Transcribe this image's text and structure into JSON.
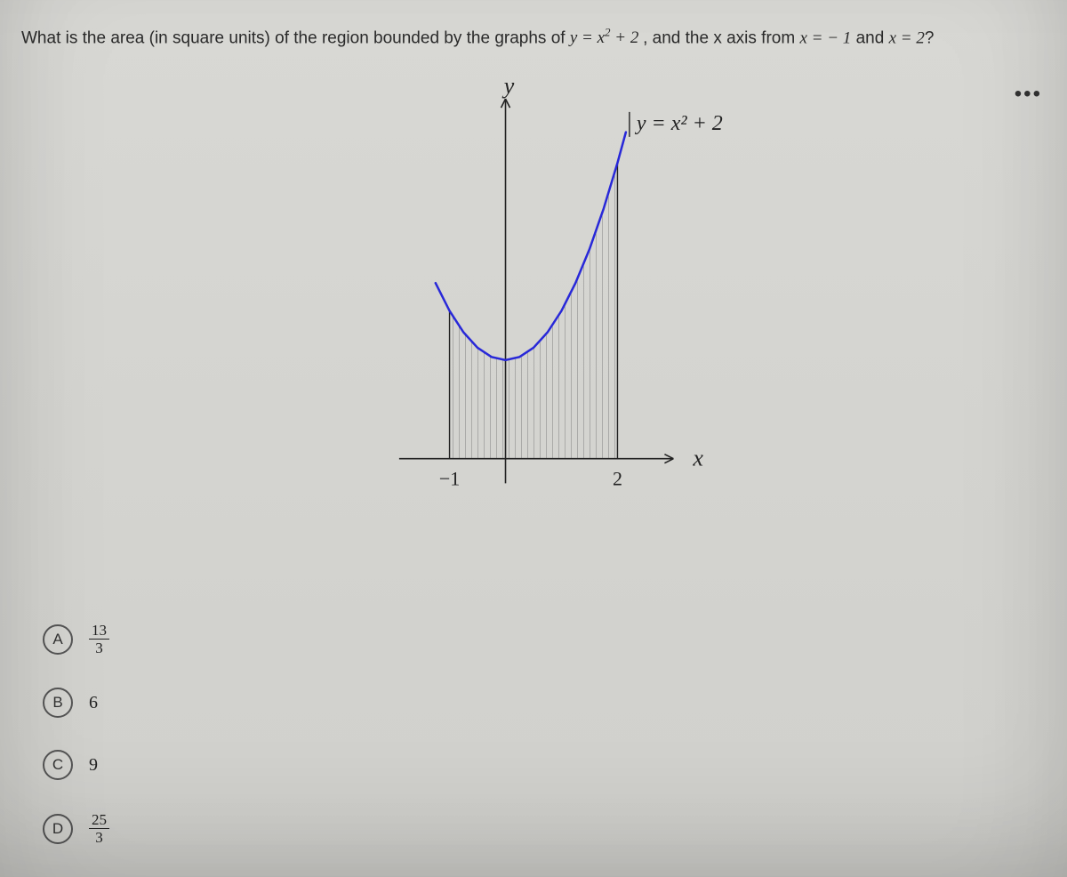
{
  "question": {
    "prefix": "What is the area (in square units) of the region bounded by the graphs of ",
    "eq1_lhs": "y",
    "eq1_rhs_base": "x",
    "eq1_rhs_exp": "2",
    "eq1_rhs_tail": "+ 2",
    "mid": ", and the x axis from ",
    "eq2": "x = − 1",
    "and": " and ",
    "eq3": "x = 2",
    "qmark": "?"
  },
  "more_icon": "•••",
  "graph": {
    "y_label": "y",
    "x_label": "x",
    "curve_label": "y = x² + 2",
    "x_tick_left": "−1",
    "x_tick_right": "2",
    "curve_color": "#2828d8",
    "axis_color": "#222222",
    "hatch_color": "#808080",
    "label_color": "#222222",
    "background": "transparent",
    "xlim": [
      -2.2,
      3.2
    ],
    "ylim": [
      -0.8,
      7.5
    ],
    "curve_points": [
      [
        -1.25,
        3.5625
      ],
      [
        -1.0,
        3.0
      ],
      [
        -0.75,
        2.5625
      ],
      [
        -0.5,
        2.25
      ],
      [
        -0.25,
        2.0625
      ],
      [
        0.0,
        2.0
      ],
      [
        0.25,
        2.0625
      ],
      [
        0.5,
        2.25
      ],
      [
        0.75,
        2.5625
      ],
      [
        1.0,
        3.0
      ],
      [
        1.25,
        3.5625
      ],
      [
        1.5,
        4.25
      ],
      [
        1.75,
        5.0625
      ],
      [
        2.0,
        6.0
      ],
      [
        2.15,
        6.6225
      ]
    ],
    "shade_x": [
      -1,
      2
    ],
    "line_width": 2.5,
    "font_family": "Times New Roman, serif",
    "label_fontsize_axis": 26,
    "label_fontsize_tick": 22,
    "label_fontsize_eq": 24
  },
  "options": [
    {
      "letter": "A",
      "type": "fraction",
      "num": "13",
      "den": "3"
    },
    {
      "letter": "B",
      "type": "plain",
      "value": "6"
    },
    {
      "letter": "C",
      "type": "plain",
      "value": "9"
    },
    {
      "letter": "D",
      "type": "fraction",
      "num": "25",
      "den": "3"
    }
  ],
  "colors": {
    "page_bg": "#d4d4d0",
    "text": "#2a2a2a",
    "option_border": "#555555"
  }
}
